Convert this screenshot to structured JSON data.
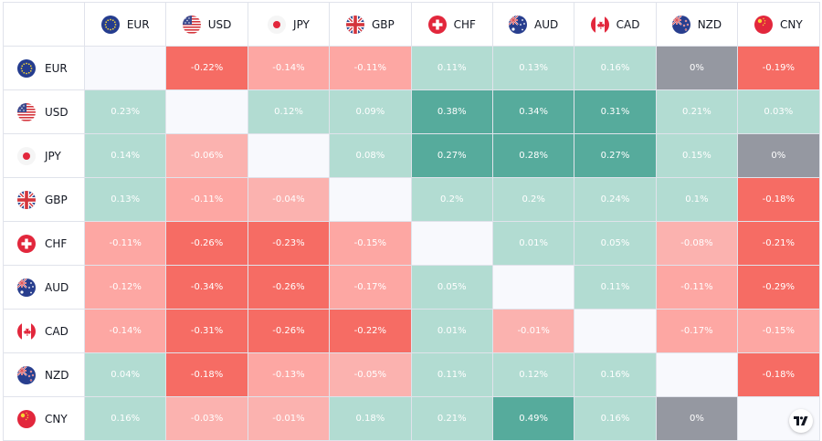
{
  "currencies": [
    "EUR",
    "USD",
    "JPY",
    "GBP",
    "CHF",
    "AUD",
    "CAD",
    "NZD",
    "CNY"
  ],
  "flag_icons": [
    "eu-flag-icon",
    "us-flag-icon",
    "japan-flag-icon",
    "uk-flag-icon",
    "swiss-flag-icon",
    "australia-flag-icon",
    "canada-flag-icon",
    "new-zealand-flag-icon",
    "china-flag-icon"
  ],
  "colors": {
    "strong_green": "#56ab9c",
    "light_green": "#b2dcd2",
    "light_red": "#fbb2af",
    "mid_red": "#fda7a3",
    "strong_red": "#f66c64",
    "neutral_gray": "#9598a1",
    "diagonal": "#f8f9fd",
    "border": "#e0e3eb"
  },
  "matrix": [
    [
      null,
      "-0.22%",
      "-0.14%",
      "-0.11%",
      "0.11%",
      "0.13%",
      "0.16%",
      "0%",
      "-0.19%"
    ],
    [
      "0.23%",
      null,
      "0.12%",
      "0.09%",
      "0.38%",
      "0.34%",
      "0.31%",
      "0.21%",
      "0.03%"
    ],
    [
      "0.14%",
      "-0.06%",
      null,
      "0.08%",
      "0.27%",
      "0.28%",
      "0.27%",
      "0.15%",
      "0%"
    ],
    [
      "0.13%",
      "-0.11%",
      "-0.04%",
      null,
      "0.2%",
      "0.2%",
      "0.24%",
      "0.1%",
      "-0.18%"
    ],
    [
      "-0.11%",
      "-0.26%",
      "-0.23%",
      "-0.15%",
      null,
      "0.01%",
      "0.05%",
      "-0.08%",
      "-0.21%"
    ],
    [
      "-0.12%",
      "-0.34%",
      "-0.26%",
      "-0.17%",
      "0.05%",
      null,
      "0.11%",
      "-0.11%",
      "-0.29%"
    ],
    [
      "-0.14%",
      "-0.31%",
      "-0.26%",
      "-0.22%",
      "0.01%",
      "-0.01%",
      null,
      "-0.17%",
      "-0.15%"
    ],
    [
      "0.04%",
      "-0.18%",
      "-0.13%",
      "-0.05%",
      "0.11%",
      "0.12%",
      "0.16%",
      null,
      "-0.18%"
    ],
    [
      "0.16%",
      "-0.03%",
      "-0.01%",
      "0.18%",
      "0.21%",
      "0.49%",
      "0.16%",
      "0%",
      null
    ]
  ],
  "logo": "tradingview-logo-icon"
}
